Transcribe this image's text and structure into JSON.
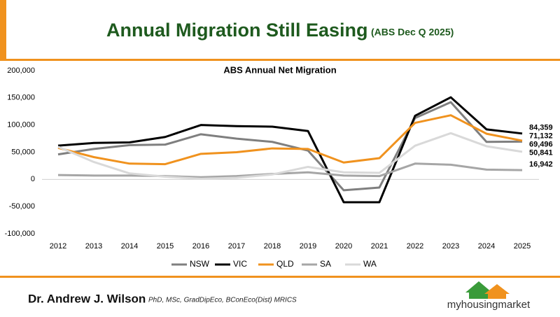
{
  "header": {
    "title": "Annual Migration Still Easing",
    "subtitle": "(ABS Dec Q 2025)"
  },
  "chart_data": {
    "type": "line",
    "title": "ABS Annual Net Migration",
    "categories": [
      "2012",
      "2013",
      "2014",
      "2015",
      "2016",
      "2017",
      "2018",
      "2019",
      "2020",
      "2021",
      "2022",
      "2023",
      "2024",
      "2025"
    ],
    "series": [
      {
        "name": "NSW",
        "color": "#7f7f7f",
        "values": [
          46000,
          56000,
          63000,
          64000,
          83000,
          75000,
          69000,
          53000,
          -20000,
          -15000,
          113000,
          142000,
          69000,
          69496
        ],
        "value_labels": [
          null,
          null,
          null,
          null,
          null,
          null,
          null,
          null,
          null,
          null,
          null,
          null,
          null,
          "69,496"
        ]
      },
      {
        "name": "VIC",
        "color": "#000000",
        "values": [
          62000,
          67000,
          68000,
          78000,
          100000,
          98000,
          97000,
          89000,
          -42000,
          -42000,
          117000,
          151000,
          92000,
          84359
        ],
        "value_labels": [
          null,
          null,
          null,
          null,
          null,
          null,
          null,
          null,
          null,
          null,
          null,
          null,
          null,
          "84,359"
        ]
      },
      {
        "name": "QLD",
        "color": "#f0921e",
        "values": [
          58000,
          41000,
          29000,
          28000,
          47000,
          50000,
          57000,
          56000,
          31000,
          39000,
          104000,
          118000,
          84000,
          71132
        ],
        "value_labels": [
          null,
          null,
          null,
          null,
          null,
          null,
          null,
          null,
          null,
          null,
          null,
          null,
          null,
          "71,132"
        ]
      },
      {
        "name": "SA",
        "color": "#a6a6a6",
        "values": [
          8000,
          7000,
          7000,
          6000,
          4000,
          6000,
          10000,
          13000,
          7000,
          6000,
          29000,
          27000,
          18000,
          16942
        ],
        "value_labels": [
          null,
          null,
          null,
          null,
          null,
          null,
          null,
          null,
          null,
          null,
          null,
          null,
          null,
          "16,942"
        ]
      },
      {
        "name": "WA",
        "color": "#d9d9d9",
        "values": [
          60000,
          32000,
          11000,
          5000,
          1000,
          3000,
          9000,
          23000,
          13000,
          12000,
          62000,
          85000,
          61000,
          50841
        ],
        "value_labels": [
          null,
          null,
          null,
          null,
          null,
          null,
          null,
          null,
          null,
          null,
          null,
          null,
          null,
          "50,841"
        ]
      }
    ],
    "ylim": [
      -100000,
      200000
    ],
    "yticks": [
      {
        "value": -100000,
        "label": "-100,000"
      },
      {
        "value": -50000,
        "label": "-50,000"
      },
      0,
      {
        "value": 50000,
        "label": "50,000"
      },
      {
        "value": 100000,
        "label": "100,000"
      },
      {
        "value": 150000,
        "label": "150,000"
      },
      {
        "value": 200000,
        "label": "200,000"
      }
    ],
    "grid": false,
    "legend": "bottom"
  },
  "footer": {
    "author": "Dr. Andrew J. Wilson",
    "credentials": "PhD, MSc, GradDipEco, BConEco(Dist) MRICS",
    "logo": "myhousingmarket"
  }
}
